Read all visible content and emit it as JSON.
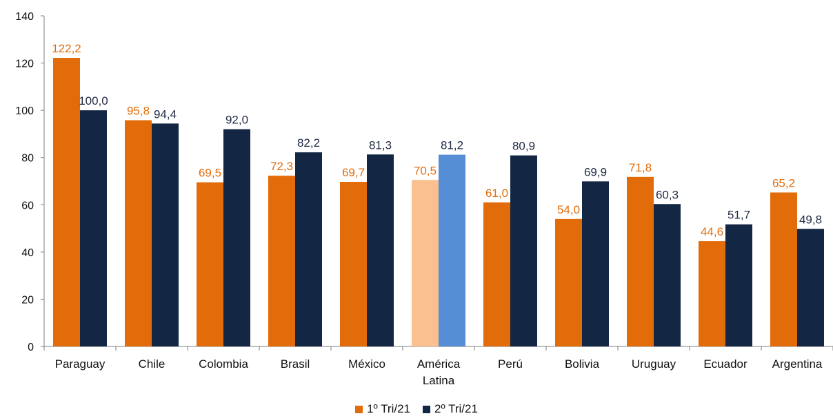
{
  "chart_data": {
    "type": "bar",
    "categories": [
      "Paraguay",
      "Chile",
      "Colombia",
      "Brasil",
      "México",
      "América\nLatina",
      "Perú",
      "Bolivia",
      "Uruguay",
      "Ecuador",
      "Argentina"
    ],
    "series": [
      {
        "name": "1º Tri/21",
        "values": [
          122.2,
          95.8,
          69.5,
          72.3,
          69.7,
          70.5,
          61.0,
          54.0,
          71.8,
          44.6,
          65.2
        ],
        "color": "#E36C0A",
        "label_color": "#E36C0A"
      },
      {
        "name": "2º Tri/21",
        "values": [
          100.0,
          94.4,
          92.0,
          82.2,
          81.3,
          81.2,
          80.9,
          69.9,
          60.3,
          51.7,
          49.8
        ],
        "color": "#132643",
        "label_color": "#1F2A44"
      }
    ],
    "value_labels": [
      [
        "122,2",
        "95,8",
        "69,5",
        "72,3",
        "69,7",
        "70,5",
        "61,0",
        "54,0",
        "71,8",
        "44,6",
        "65,2"
      ],
      [
        "100,0",
        "94,4",
        "92,0",
        "82,2",
        "81,3",
        "81,2",
        "80,9",
        "69,9",
        "60,3",
        "51,7",
        "49,8"
      ]
    ],
    "highlight": {
      "category_index": 5,
      "colors": [
        "#FAC090",
        "#558ED5"
      ]
    },
    "yticks": [
      0,
      20,
      40,
      60,
      80,
      100,
      120,
      140
    ],
    "ylim": [
      0,
      140
    ],
    "title": "",
    "xlabel": "",
    "ylabel": "",
    "legend_position": "bottom",
    "grid": false
  }
}
